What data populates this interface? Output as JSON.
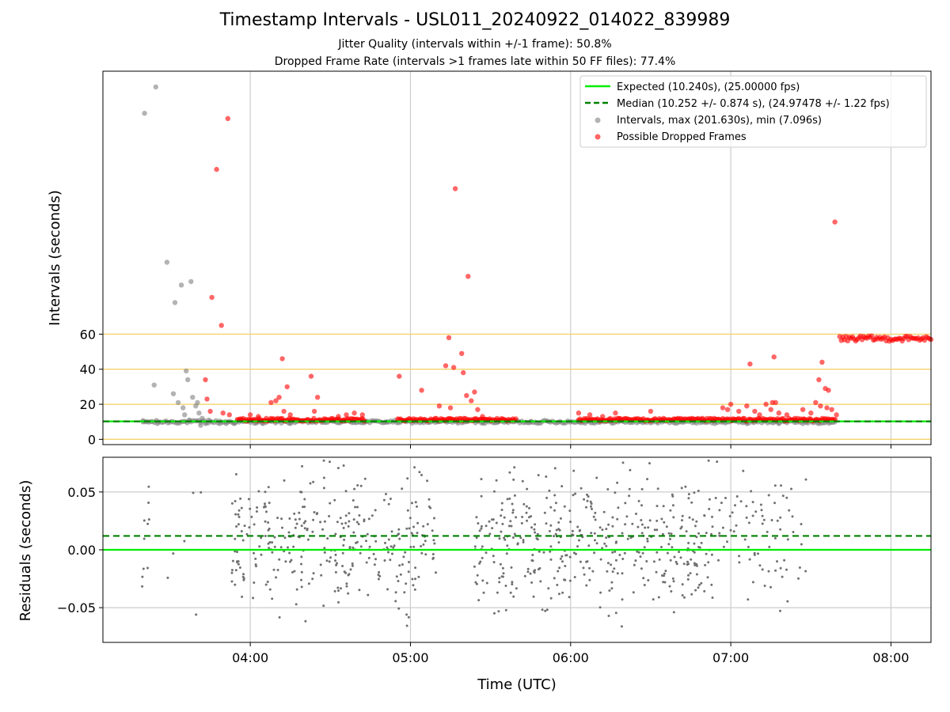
{
  "title": "Timestamp Intervals - USL011_20240922_014022_839989",
  "subtitle_jitter": "Jitter Quality (intervals within +/-1 frame): 50.8%",
  "subtitle_dropped": "Dropped Frame Rate (intervals >1 frames late within 50 FF files): 77.4%",
  "colors": {
    "expected": "#00ee00",
    "median": "#008000",
    "intervals": "#808080",
    "dropped": "#ff0000",
    "threshold_lines": "#f5d36b",
    "grid": "#cccccc"
  },
  "chart_data": [
    {
      "type": "scatter",
      "panel": "top",
      "ylabel": "Intervals (seconds)",
      "yticks": [
        "0",
        "20",
        "40",
        "60"
      ],
      "ylim": [
        -3,
        210
      ],
      "threshold_lines_y": [
        0,
        20,
        40,
        60
      ],
      "legend_position": "upper right",
      "legend": [
        {
          "label": "Expected (10.240s), (25.00000 fps)",
          "kind": "line-solid"
        },
        {
          "label": "Median (10.252 +/- 0.874 s), (24.97478 +/- 1.22 fps)",
          "kind": "line-dashed"
        },
        {
          "label": "Intervals, max (201.630s), min (7.096s)",
          "kind": "dot-gray"
        },
        {
          "label": "Possible Dropped Frames",
          "kind": "dot-red"
        }
      ],
      "expected_y": 10.24,
      "median_y": 10.252,
      "gray_points": [
        [
          3.33,
          10
        ],
        [
          3.34,
          186
        ],
        [
          3.4,
          31
        ],
        [
          3.41,
          201
        ],
        [
          3.42,
          9
        ],
        [
          3.48,
          101
        ],
        [
          3.52,
          26
        ],
        [
          3.53,
          78
        ],
        [
          3.55,
          21
        ],
        [
          3.57,
          88
        ],
        [
          3.58,
          18
        ],
        [
          3.59,
          14
        ],
        [
          3.6,
          39
        ],
        [
          3.61,
          34
        ],
        [
          3.62,
          11
        ],
        [
          3.63,
          90
        ],
        [
          3.64,
          24
        ],
        [
          3.66,
          19
        ],
        [
          3.67,
          21
        ],
        [
          3.68,
          15
        ],
        [
          3.69,
          8
        ],
        [
          3.7,
          12
        ],
        [
          3.72,
          9
        ],
        [
          3.74,
          11
        ],
        [
          3.81,
          9
        ],
        [
          3.85,
          9
        ],
        [
          3.9,
          9
        ],
        [
          4.08,
          9
        ],
        [
          4.25,
          9
        ],
        [
          4.72,
          10
        ],
        [
          4.85,
          10
        ],
        [
          5.17,
          10
        ],
        [
          5.45,
          10
        ],
        [
          5.55,
          10
        ],
        [
          5.75,
          10
        ],
        [
          6.05,
          10
        ],
        [
          6.9,
          9
        ],
        [
          7.1,
          9
        ],
        [
          7.3,
          9
        ],
        [
          7.45,
          9
        ],
        [
          7.55,
          9
        ],
        [
          7.62,
          10
        ]
      ],
      "red_points": [
        [
          3.72,
          34
        ],
        [
          3.73,
          23
        ],
        [
          3.75,
          16
        ],
        [
          3.76,
          81
        ],
        [
          3.79,
          154
        ],
        [
          3.82,
          65
        ],
        [
          3.83,
          15
        ],
        [
          3.86,
          183
        ],
        [
          3.87,
          14
        ],
        [
          4.0,
          14
        ],
        [
          4.05,
          13
        ],
        [
          4.1,
          12
        ],
        [
          4.13,
          21
        ],
        [
          4.16,
          22
        ],
        [
          4.18,
          24
        ],
        [
          4.2,
          46
        ],
        [
          4.21,
          16
        ],
        [
          4.23,
          30
        ],
        [
          4.25,
          14
        ],
        [
          4.38,
          36
        ],
        [
          4.4,
          16
        ],
        [
          4.42,
          24
        ],
        [
          4.55,
          13
        ],
        [
          4.6,
          14
        ],
        [
          4.65,
          15
        ],
        [
          4.7,
          14
        ],
        [
          4.93,
          36
        ],
        [
          5.07,
          28
        ],
        [
          5.18,
          19
        ],
        [
          5.22,
          42
        ],
        [
          5.24,
          58
        ],
        [
          5.25,
          18
        ],
        [
          5.27,
          41
        ],
        [
          5.28,
          143
        ],
        [
          5.32,
          49
        ],
        [
          5.33,
          38
        ],
        [
          5.35,
          25
        ],
        [
          5.36,
          93
        ],
        [
          5.38,
          22
        ],
        [
          5.4,
          27
        ],
        [
          5.42,
          17
        ],
        [
          5.45,
          13
        ],
        [
          6.05,
          15
        ],
        [
          6.12,
          14
        ],
        [
          6.2,
          13
        ],
        [
          6.28,
          15
        ],
        [
          6.5,
          16
        ],
        [
          6.95,
          18
        ],
        [
          6.98,
          17
        ],
        [
          7.0,
          20
        ],
        [
          7.05,
          16
        ],
        [
          7.1,
          19
        ],
        [
          7.12,
          43
        ],
        [
          7.15,
          16
        ],
        [
          7.18,
          14
        ],
        [
          7.22,
          20
        ],
        [
          7.25,
          17
        ],
        [
          7.26,
          21
        ],
        [
          7.27,
          47
        ],
        [
          7.28,
          21
        ],
        [
          7.3,
          15
        ],
        [
          7.35,
          14
        ],
        [
          7.45,
          17
        ],
        [
          7.5,
          15
        ],
        [
          7.53,
          21
        ],
        [
          7.55,
          34
        ],
        [
          7.56,
          19
        ],
        [
          7.57,
          44
        ],
        [
          7.59,
          29
        ],
        [
          7.6,
          18
        ],
        [
          7.61,
          28
        ],
        [
          7.63,
          17
        ],
        [
          7.65,
          124
        ],
        [
          7.66,
          14
        ]
      ],
      "red_plateau": {
        "x_start": 7.68,
        "x_end": 8.25,
        "y_min": 56,
        "y_max": 59
      }
    },
    {
      "type": "scatter",
      "panel": "bottom",
      "xlabel": "Time (UTC)",
      "ylabel": "Residuals (seconds)",
      "xlim": [
        3.08,
        8.25
      ],
      "xticks": [
        {
          "x": 4,
          "label": "04:00"
        },
        {
          "x": 5,
          "label": "05:00"
        },
        {
          "x": 6,
          "label": "06:00"
        },
        {
          "x": 7,
          "label": "07:00"
        },
        {
          "x": 8,
          "label": "08:00"
        }
      ],
      "yticks": [
        {
          "y": 0.05,
          "label": "0.05"
        },
        {
          "y": 0.0,
          "label": "0.00"
        },
        {
          "y": -0.05,
          "label": "−0.05"
        }
      ],
      "ylim": [
        -0.08,
        0.08
      ],
      "expected_y": 0.0,
      "median_y": 0.012,
      "residual_segments": [
        {
          "x_start": 3.32,
          "x_end": 3.37,
          "count": 10
        },
        {
          "x_start": 3.4,
          "x_end": 3.7,
          "count": 6
        },
        {
          "x_start": 3.88,
          "x_end": 5.17,
          "count": 330
        },
        {
          "x_start": 5.4,
          "x_end": 6.9,
          "count": 420
        },
        {
          "x_start": 6.9,
          "x_end": 7.47,
          "count": 80
        }
      ]
    }
  ]
}
